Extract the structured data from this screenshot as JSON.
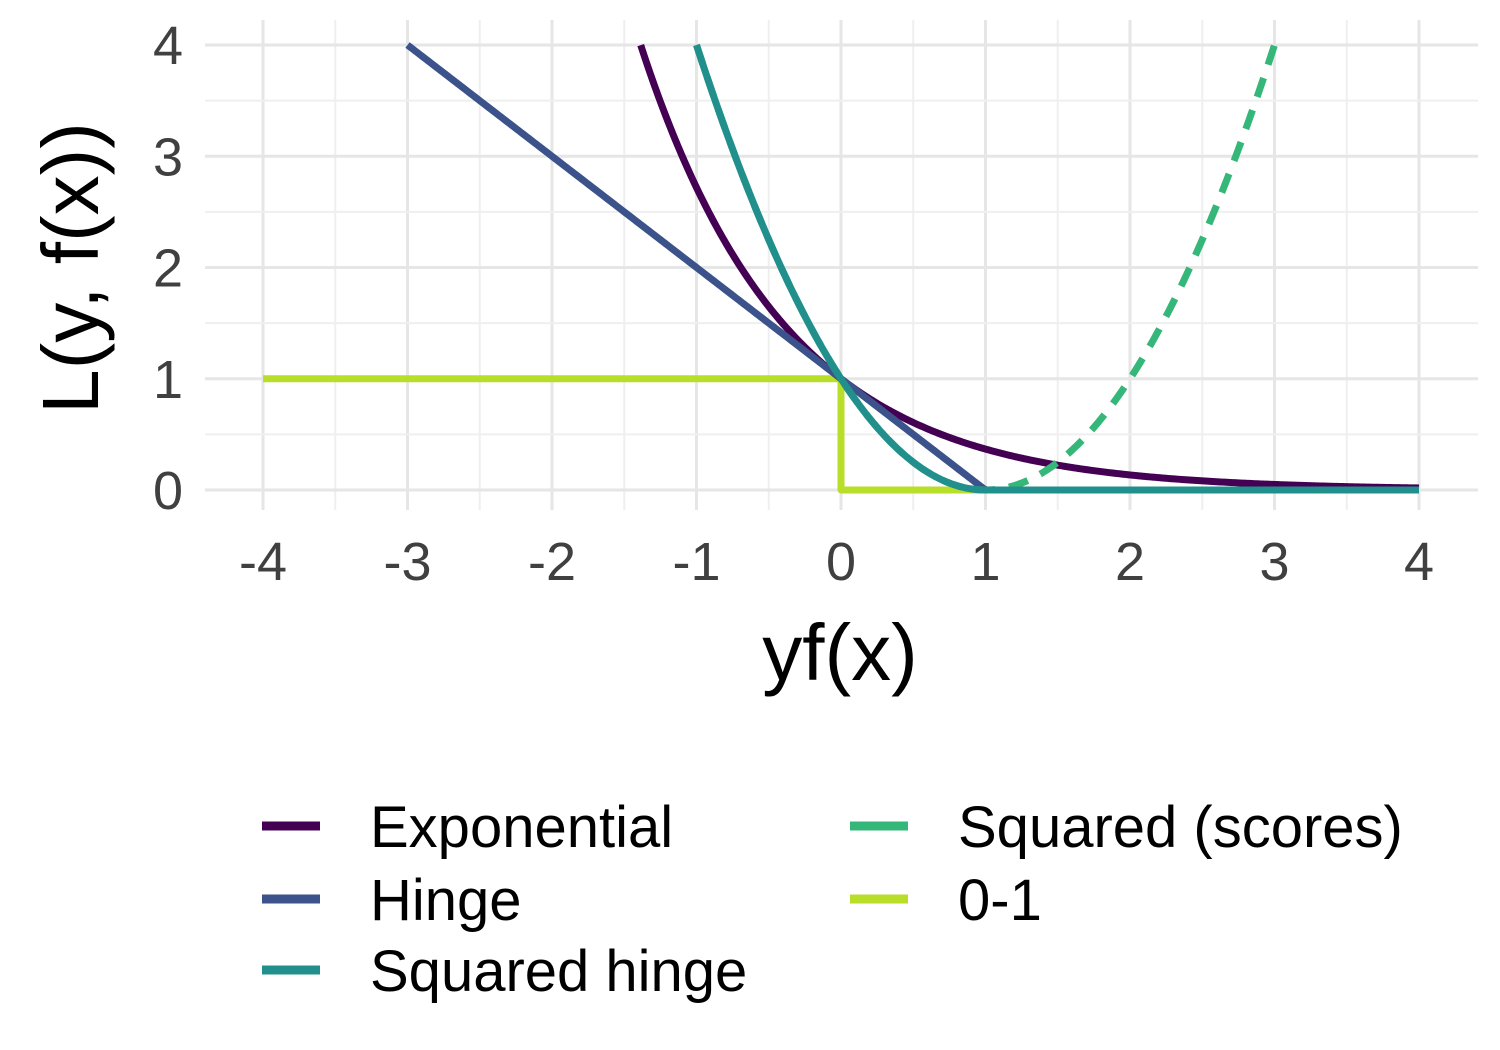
{
  "chart_data": {
    "type": "line",
    "title": "",
    "xlabel": "yf(x)",
    "ylabel": "L(y, f(x))",
    "xlim": [
      -4,
      4
    ],
    "ylim": [
      0,
      4
    ],
    "xticks": [
      -4,
      -3,
      -2,
      -1,
      0,
      1,
      2,
      3,
      4
    ],
    "yticks": [
      0,
      1,
      2,
      3,
      4
    ],
    "grid": true,
    "legend_position": "bottom",
    "series": [
      {
        "name": "Exponential",
        "color": "#440154",
        "dash": "solid",
        "formula": "exp(-x)",
        "x_range": [
          -1.386,
          4
        ]
      },
      {
        "name": "Hinge",
        "color": "#3B528B",
        "dash": "solid",
        "formula": "max(0, 1 - x)",
        "x_range": [
          -3,
          4
        ]
      },
      {
        "name": "Squared hinge",
        "color": "#21908C",
        "dash": "solid",
        "formula": "max(0, 1 - x)^2",
        "x_range": [
          -1,
          4
        ]
      },
      {
        "name": "Squared (scores)",
        "color": "#35B779",
        "dash": "dashed",
        "formula": "(1 - x)^2",
        "x_range": [
          -1,
          3
        ]
      },
      {
        "name": "0-1",
        "color": "#B8DE29",
        "dash": "solid",
        "formula": "x < 0 ? 1 : 0",
        "x_range": [
          -4,
          4
        ]
      }
    ]
  }
}
